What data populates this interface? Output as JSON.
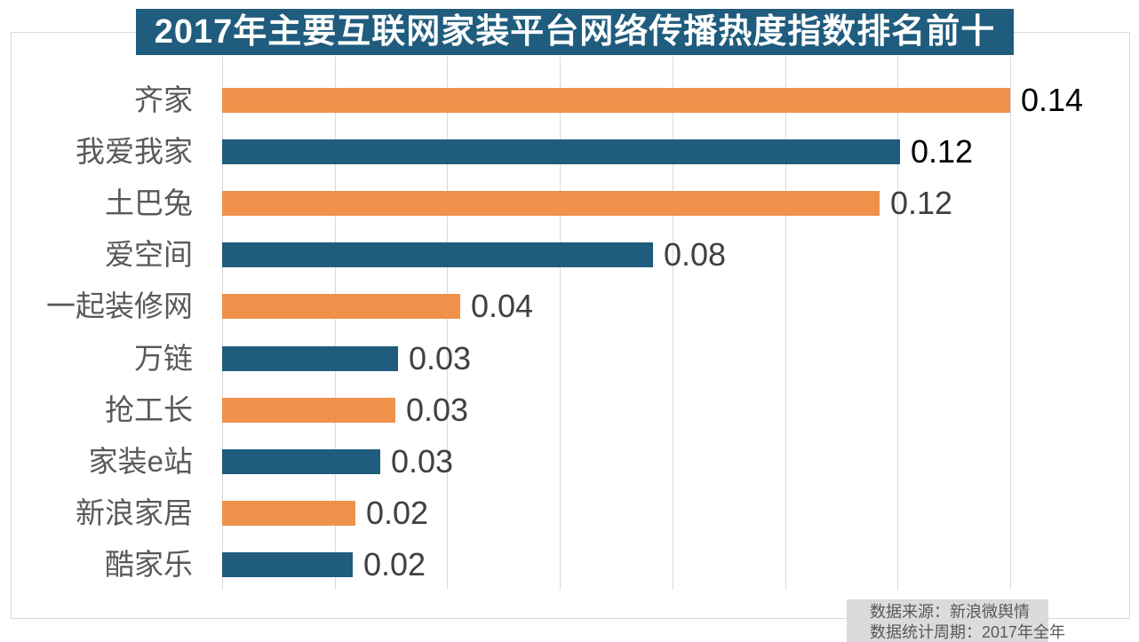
{
  "title": "2017年主要互联网家装平台网络传播热度指数排名前十",
  "source_note": {
    "line1": "数据来源：新浪微舆情",
    "line2": "数据统计周期：2017年全年"
  },
  "colors": {
    "orange": "#F0914B",
    "blue": "#1F5C7D",
    "grid": "#D9D9D9",
    "border": "#D9D9D9",
    "title_bg": "#1F5C7D",
    "title_text": "#FFFFFF",
    "category_text": "#595959",
    "note_bg": "#DBDBDB",
    "note_text": "#595959"
  },
  "chart_data": {
    "type": "bar",
    "orientation": "horizontal",
    "title": "2017年主要互联网家装平台网络传播热度指数排名前十",
    "categories": [
      "齐家",
      "我爱我家",
      "土巴兔",
      "爱空间",
      "一起装修网",
      "万链",
      "抢工长",
      "家装e站",
      "新浪家居",
      "酷家乐"
    ],
    "values": [
      0.14,
      0.12,
      0.12,
      0.08,
      0.04,
      0.03,
      0.03,
      0.03,
      0.02,
      0.02
    ],
    "value_labels": [
      "0.14",
      "0.12",
      "0.12",
      "0.08",
      "0.04",
      "0.03",
      "0.03",
      "0.03",
      "0.02",
      "0.02"
    ],
    "estimated_values": [
      0.14,
      0.1204,
      0.1168,
      0.0766,
      0.0423,
      0.0313,
      0.0308,
      0.0281,
      0.0237,
      0.0232
    ],
    "value_label_colors": [
      "#000000",
      "#000000",
      "#404040",
      "#404040",
      "#404040",
      "#404040",
      "#404040",
      "#404040",
      "#404040",
      "#404040"
    ],
    "bar_color_odd_rank": "#F0914B",
    "bar_color_even_rank": "#1F5C7D",
    "xlabel": "",
    "ylabel": "",
    "xlim": [
      0,
      0.14
    ],
    "grid_interval": 0.02,
    "grid": true,
    "legend": false
  }
}
